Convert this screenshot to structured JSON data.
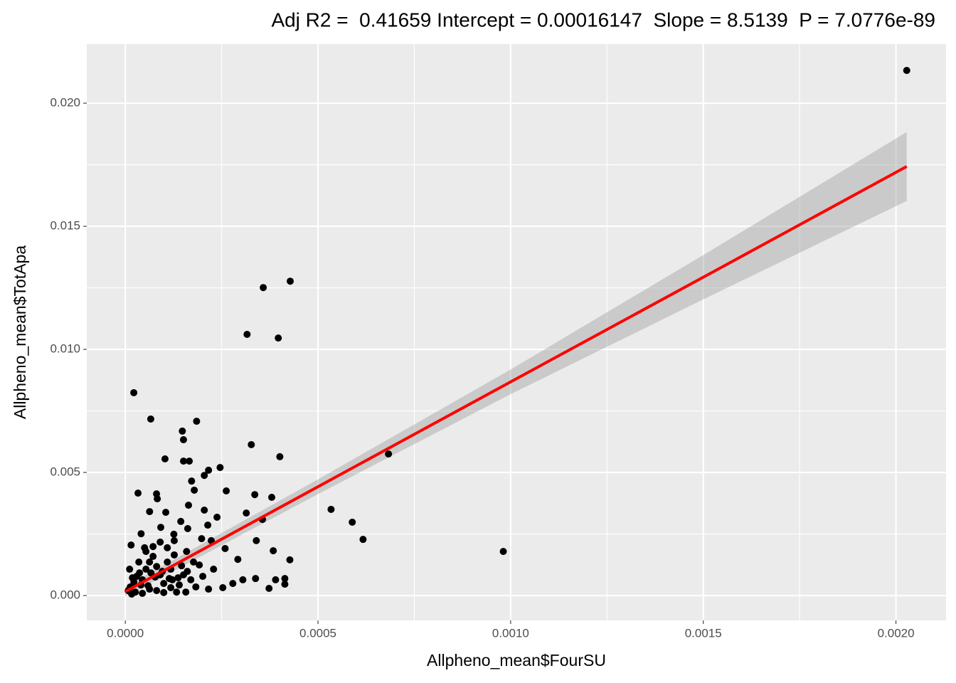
{
  "chart_data": {
    "type": "scatter",
    "title": "Adj R2 =  0.41659 Intercept = 0.00016147  Slope = 8.5139  P = 7.0776e-89",
    "x_label": "Allpheno_mean$FourSU",
    "y_label": "Allpheno_mean$TotApa",
    "xlim": [
      -0.0001,
      0.00213
    ],
    "ylim": [
      -0.00101,
      0.0224
    ],
    "xticks": [
      {
        "value": 0,
        "label": "0.0000"
      },
      0.0005,
      {
        "value": 0.001,
        "label": "0.0010"
      },
      0.0015,
      {
        "value": 0.002,
        "label": "0.0020"
      }
    ],
    "yticks": [
      {
        "value": 0,
        "label": "0.000"
      },
      0.005,
      {
        "value": 0.01,
        "label": "0.010"
      },
      0.015,
      {
        "value": 0.02,
        "label": "0.020"
      }
    ],
    "xminor": [
      0.00025,
      0.00075,
      0.00125,
      0.00175
    ],
    "yminor": [
      0.0025,
      0.0075,
      0.0125,
      0.0175
    ],
    "grid": true,
    "point_color": "#000000",
    "points": {
      "x": [
        0.002028,
        0.000358,
        0.000428,
        0.000316,
        0.000397,
        2.2e-05,
        6.6e-05,
        0.000185,
        0.000148,
        0.000151,
        0.000327,
        0.000401,
        0.000683,
        0.000103,
        0.000151,
        0.000166,
        0.000246,
        0.000216,
        0.000205,
        0.000172,
        0.000179,
        0.000262,
        3.3e-05,
        0.000336,
        8.1e-05,
        0.00038,
        8.3e-05,
        0.000164,
        0.000534,
        0.000314,
        6.3e-05,
        0.000205,
        0.000105,
        0.000238,
        0.000356,
        0.000144,
        0.000589,
        9.2e-05,
        0.000162,
        0.000214,
        4.1e-05,
        0.000126,
        0.000617,
        0.000198,
        0.000223,
        0.00034,
        0.000384,
        0.000981,
        0.000259,
        0.000292,
        0.000427,
        1.5e-05,
        5e-05,
        0.000305,
        0.000338,
        0.00039,
        0.000414,
        0.000414,
        0.000373,
        0.000253,
        0.000279,
        0.000216,
        0.000157,
        0.000161,
        0.000229,
        0.000192,
        7.4e-06,
        1.29e-05,
        2.22e-05,
        2.95e-05,
        3.69e-05,
        4.43e-05,
        5.36e-05,
        6.28e-05,
        7.2e-05,
        8.13e-05,
        9.05e-05,
        9.97e-05,
        0.000109,
        0.000118,
        0.000127,
        0.000137,
        0.000146,
        1.66e-05,
        2.59e-05,
        4.43e-05,
        6.28e-05,
        8.13e-05,
        9.97e-05,
        0.000118,
        0.000133,
        3.51e-05,
        5.36e-05,
        7.2e-05,
        9.05e-05,
        0.000109,
        0.000127,
        0.000114,
        9.6e-05,
        7.76e-05,
        5.91e-05,
        4.06e-05,
        1.11e-05,
        1.85e-05,
        6.65e-05,
        0.000122,
        0.00014,
        0.000151,
        0.00017,
        0.000177,
        0.000159,
        0.000183,
        0.000201
      ],
      "y": [
        0.02133,
        0.01251,
        0.01277,
        0.01061,
        0.01046,
        0.00824,
        0.00717,
        0.00708,
        0.00668,
        0.00633,
        0.00613,
        0.00564,
        0.00575,
        0.00555,
        0.00546,
        0.00546,
        0.0052,
        0.00509,
        0.00488,
        0.00465,
        0.00428,
        0.00425,
        0.00416,
        0.0041,
        0.00413,
        0.00399,
        0.00393,
        0.00367,
        0.0035,
        0.00335,
        0.00341,
        0.00347,
        0.00338,
        0.00318,
        0.00309,
        0.00301,
        0.00298,
        0.00277,
        0.00272,
        0.00286,
        0.00251,
        0.00249,
        0.00228,
        0.00231,
        0.00223,
        0.00223,
        0.00182,
        0.00179,
        0.00191,
        0.00147,
        0.00145,
        0.00205,
        0.00194,
        0.00064,
        0.00069,
        0.00064,
        0.00069,
        0.00046,
        0.00029,
        0.00032,
        0.00049,
        0.00026,
        0.00014,
        0.00098,
        0.00107,
        0.00124,
        0.0002,
        0.00035,
        0.00055,
        0.00078,
        0.00092,
        0.00064,
        0.00107,
        0.00136,
        0.00159,
        0.00118,
        0.00084,
        0.00049,
        0.00136,
        0.00107,
        0.00165,
        0.00072,
        0.00121,
        6e-05,
        0.00014,
        9e-05,
        0.00026,
        0.0002,
        0.00012,
        0.00032,
        0.00014,
        0.00136,
        0.00179,
        0.00199,
        0.00217,
        0.00194,
        0.00223,
        0.00069,
        0.00098,
        0.00075,
        0.0004,
        0.00043,
        0.00107,
        0.00072,
        0.00092,
        0.00064,
        0.00043,
        0.00084,
        0.00064,
        0.00136,
        0.00179,
        0.00035,
        0.00078
      ]
    },
    "fit": {
      "color": "#ff0000",
      "band_color": "#999999",
      "x": [
        0,
        0.0005,
        0.001,
        0.0015,
        0.002028
      ],
      "y": [
        0.00016,
        0.00442,
        0.00868,
        0.01293,
        0.01743
      ],
      "lower": [
        -4e-05,
        0.00412,
        0.00818,
        0.01203,
        0.01603
      ],
      "upper": [
        0.00036,
        0.00472,
        0.00918,
        0.01383,
        0.01883
      ]
    }
  }
}
